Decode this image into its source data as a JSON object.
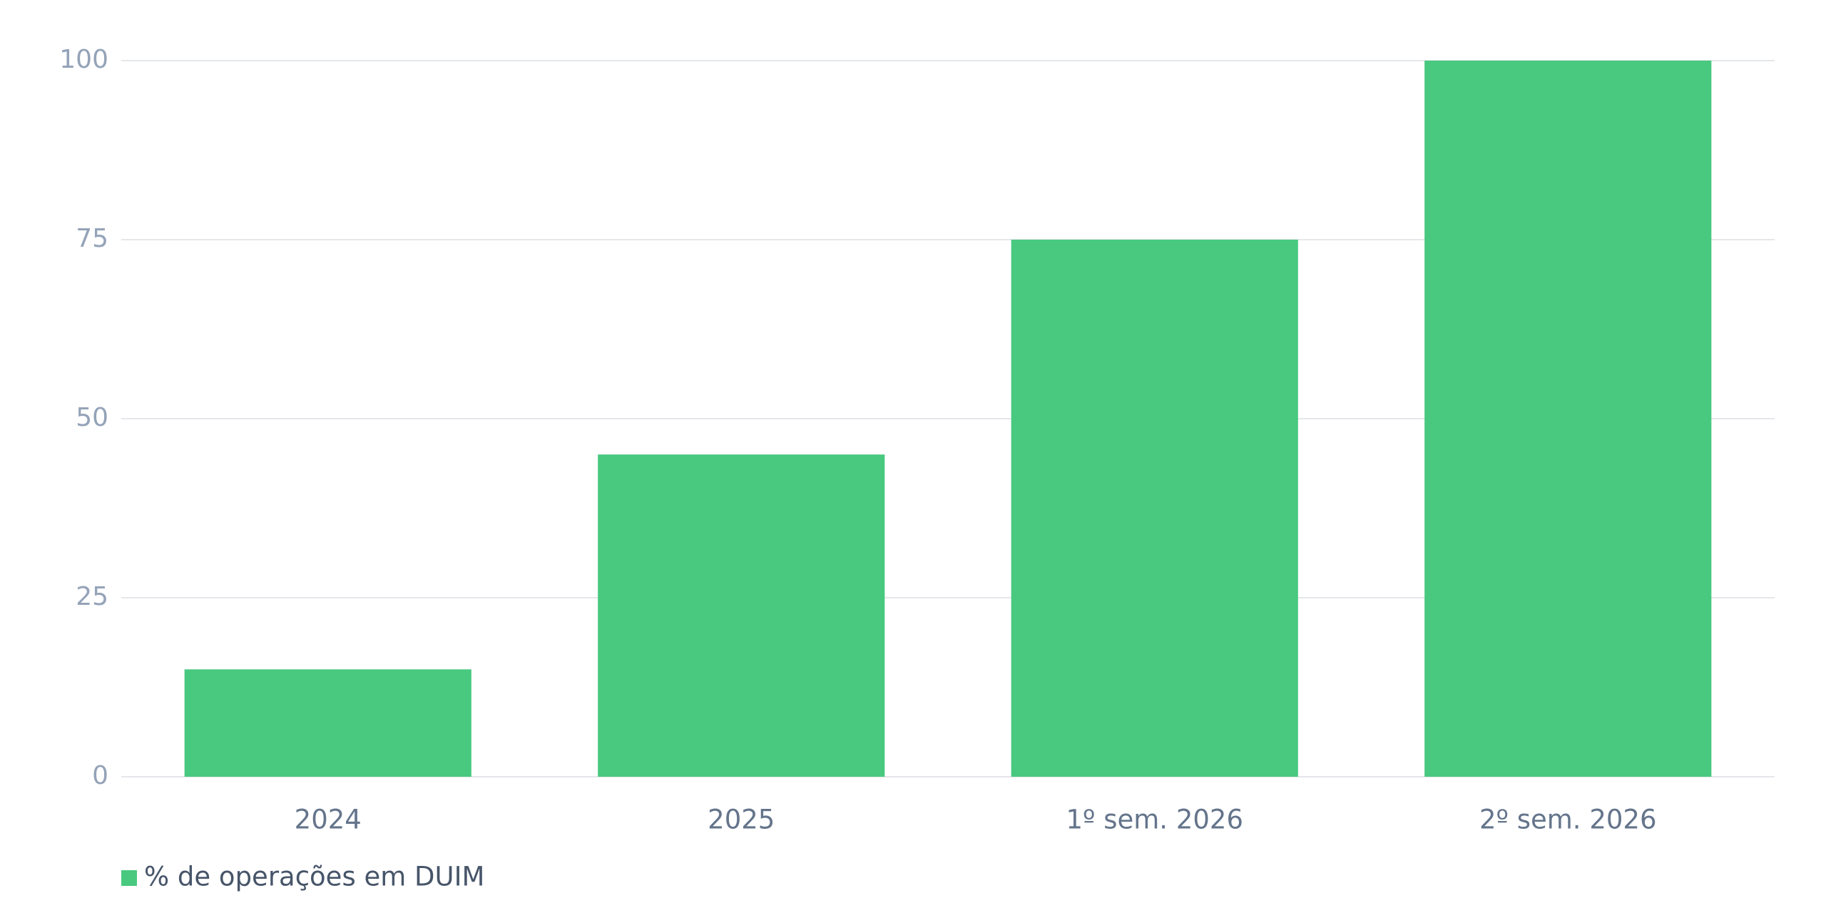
{
  "chart_data": {
    "type": "bar",
    "categories": [
      "2024",
      "2025",
      "1º sem. 2026",
      "2º sem. 2026"
    ],
    "series": [
      {
        "name": "% de operações em DUIM",
        "color": "#48c97f",
        "values": [
          15,
          45,
          75,
          100
        ]
      }
    ],
    "ylim": [
      0,
      100
    ],
    "yticks": [
      0,
      25,
      50,
      75,
      100
    ],
    "grid": true,
    "legend": "bottom-left"
  }
}
